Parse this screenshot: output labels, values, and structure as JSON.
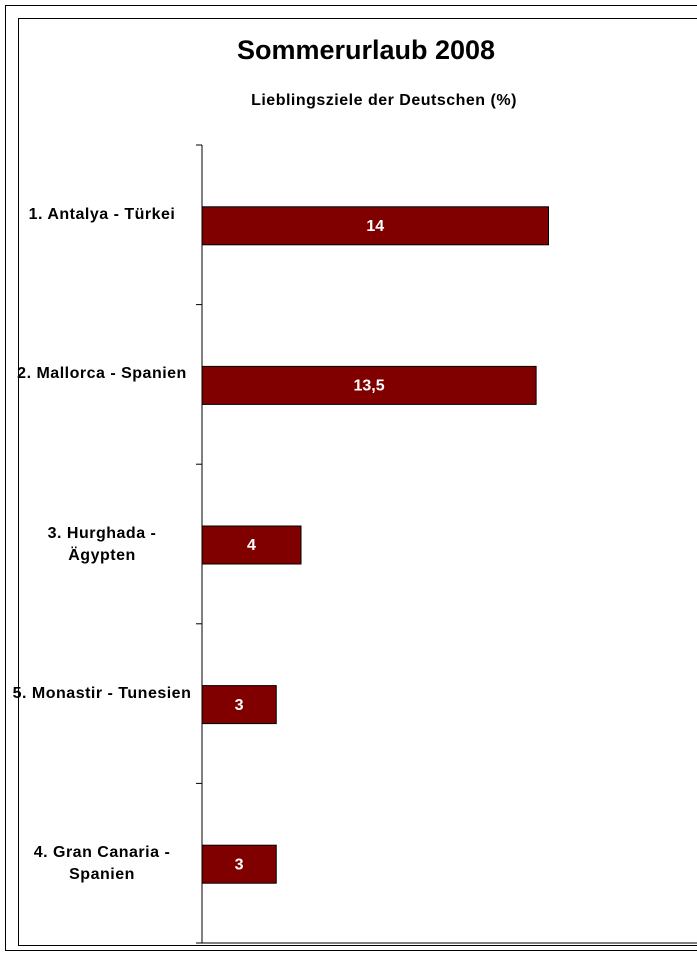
{
  "chart_data": {
    "type": "hbar",
    "title": "Sommerurlaub 2008",
    "subtitle": "Lieblingsziele der Deutschen (%)",
    "categories": [
      "1. Antalya - Türkei",
      "2. Mallorca - Spanien",
      "3. Hurghada - Ägypten",
      "5. Monastir - Tunesien",
      "4. Gran Canaria - Spanien"
    ],
    "values": [
      14,
      13.5,
      4,
      3,
      3
    ],
    "value_labels": [
      "14",
      "13,5",
      "4",
      "3",
      "3"
    ],
    "color": "#800000",
    "xlim": [
      0,
      20
    ]
  }
}
